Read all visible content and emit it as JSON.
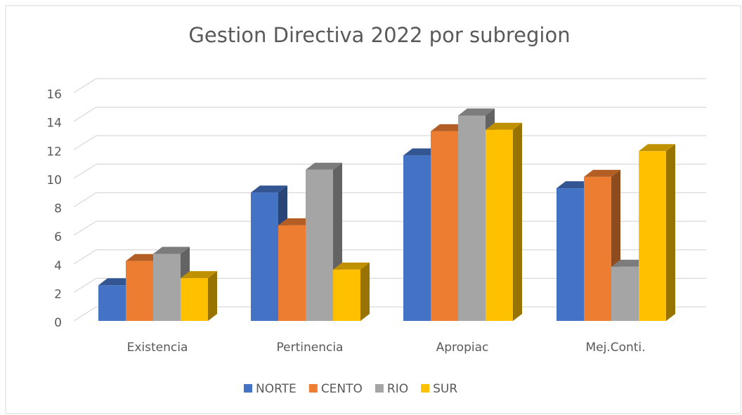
{
  "chart_data": {
    "type": "bar3d",
    "title": "Gestion Directiva 2022 por subregion",
    "categories": [
      "Existencia",
      "Pertinencia",
      "Apropiac",
      "Mej.Conti."
    ],
    "series": [
      {
        "name": "NORTE",
        "color": "#4472c4",
        "values": [
          2.5,
          9.0,
          11.6,
          9.3
        ]
      },
      {
        "name": "CENTO",
        "color": "#ed7d31",
        "values": [
          4.2,
          6.7,
          13.3,
          10.1
        ]
      },
      {
        "name": "RIO",
        "color": "#a5a5a5",
        "values": [
          4.7,
          10.6,
          14.4,
          3.8
        ]
      },
      {
        "name": "SUR",
        "color": "#ffc000",
        "values": [
          3.0,
          3.6,
          13.4,
          11.9
        ]
      }
    ],
    "ylim": [
      0,
      16
    ],
    "yticks": [
      0,
      2,
      4,
      6,
      8,
      10,
      12,
      14,
      16
    ],
    "grid": true,
    "legend": "bottom"
  }
}
